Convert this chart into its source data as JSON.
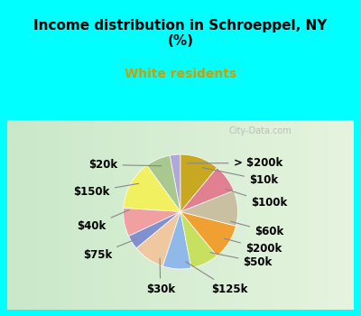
{
  "title": "Income distribution in Schroeppel, NY\n(%)",
  "subtitle": "White residents",
  "title_color": "#000000",
  "subtitle_color": "#c8a000",
  "background_color": "#00ffff",
  "chart_bg_start": "#e8f5e0",
  "chart_bg_end": "#d0e8d0",
  "watermark": "City-Data.com",
  "labels": [
    "> $200k",
    "$10k",
    "$100k",
    "$60k",
    "$200k",
    "$50k",
    "$125k",
    "$30k",
    "$75k",
    "$40k",
    "$150k",
    "$20k"
  ],
  "values": [
    3,
    7,
    14,
    8,
    4,
    9,
    8,
    8,
    10,
    10,
    8,
    11
  ],
  "colors": [
    "#b0a8d8",
    "#a8c890",
    "#f0f060",
    "#f0a0a0",
    "#8090d0",
    "#f0c8a0",
    "#90b8e8",
    "#c8e060",
    "#f0a030",
    "#c8c0a0",
    "#e08090",
    "#c8a820"
  ],
  "label_fontsize": 8.5,
  "label_color": "#000000",
  "startangle": 90
}
